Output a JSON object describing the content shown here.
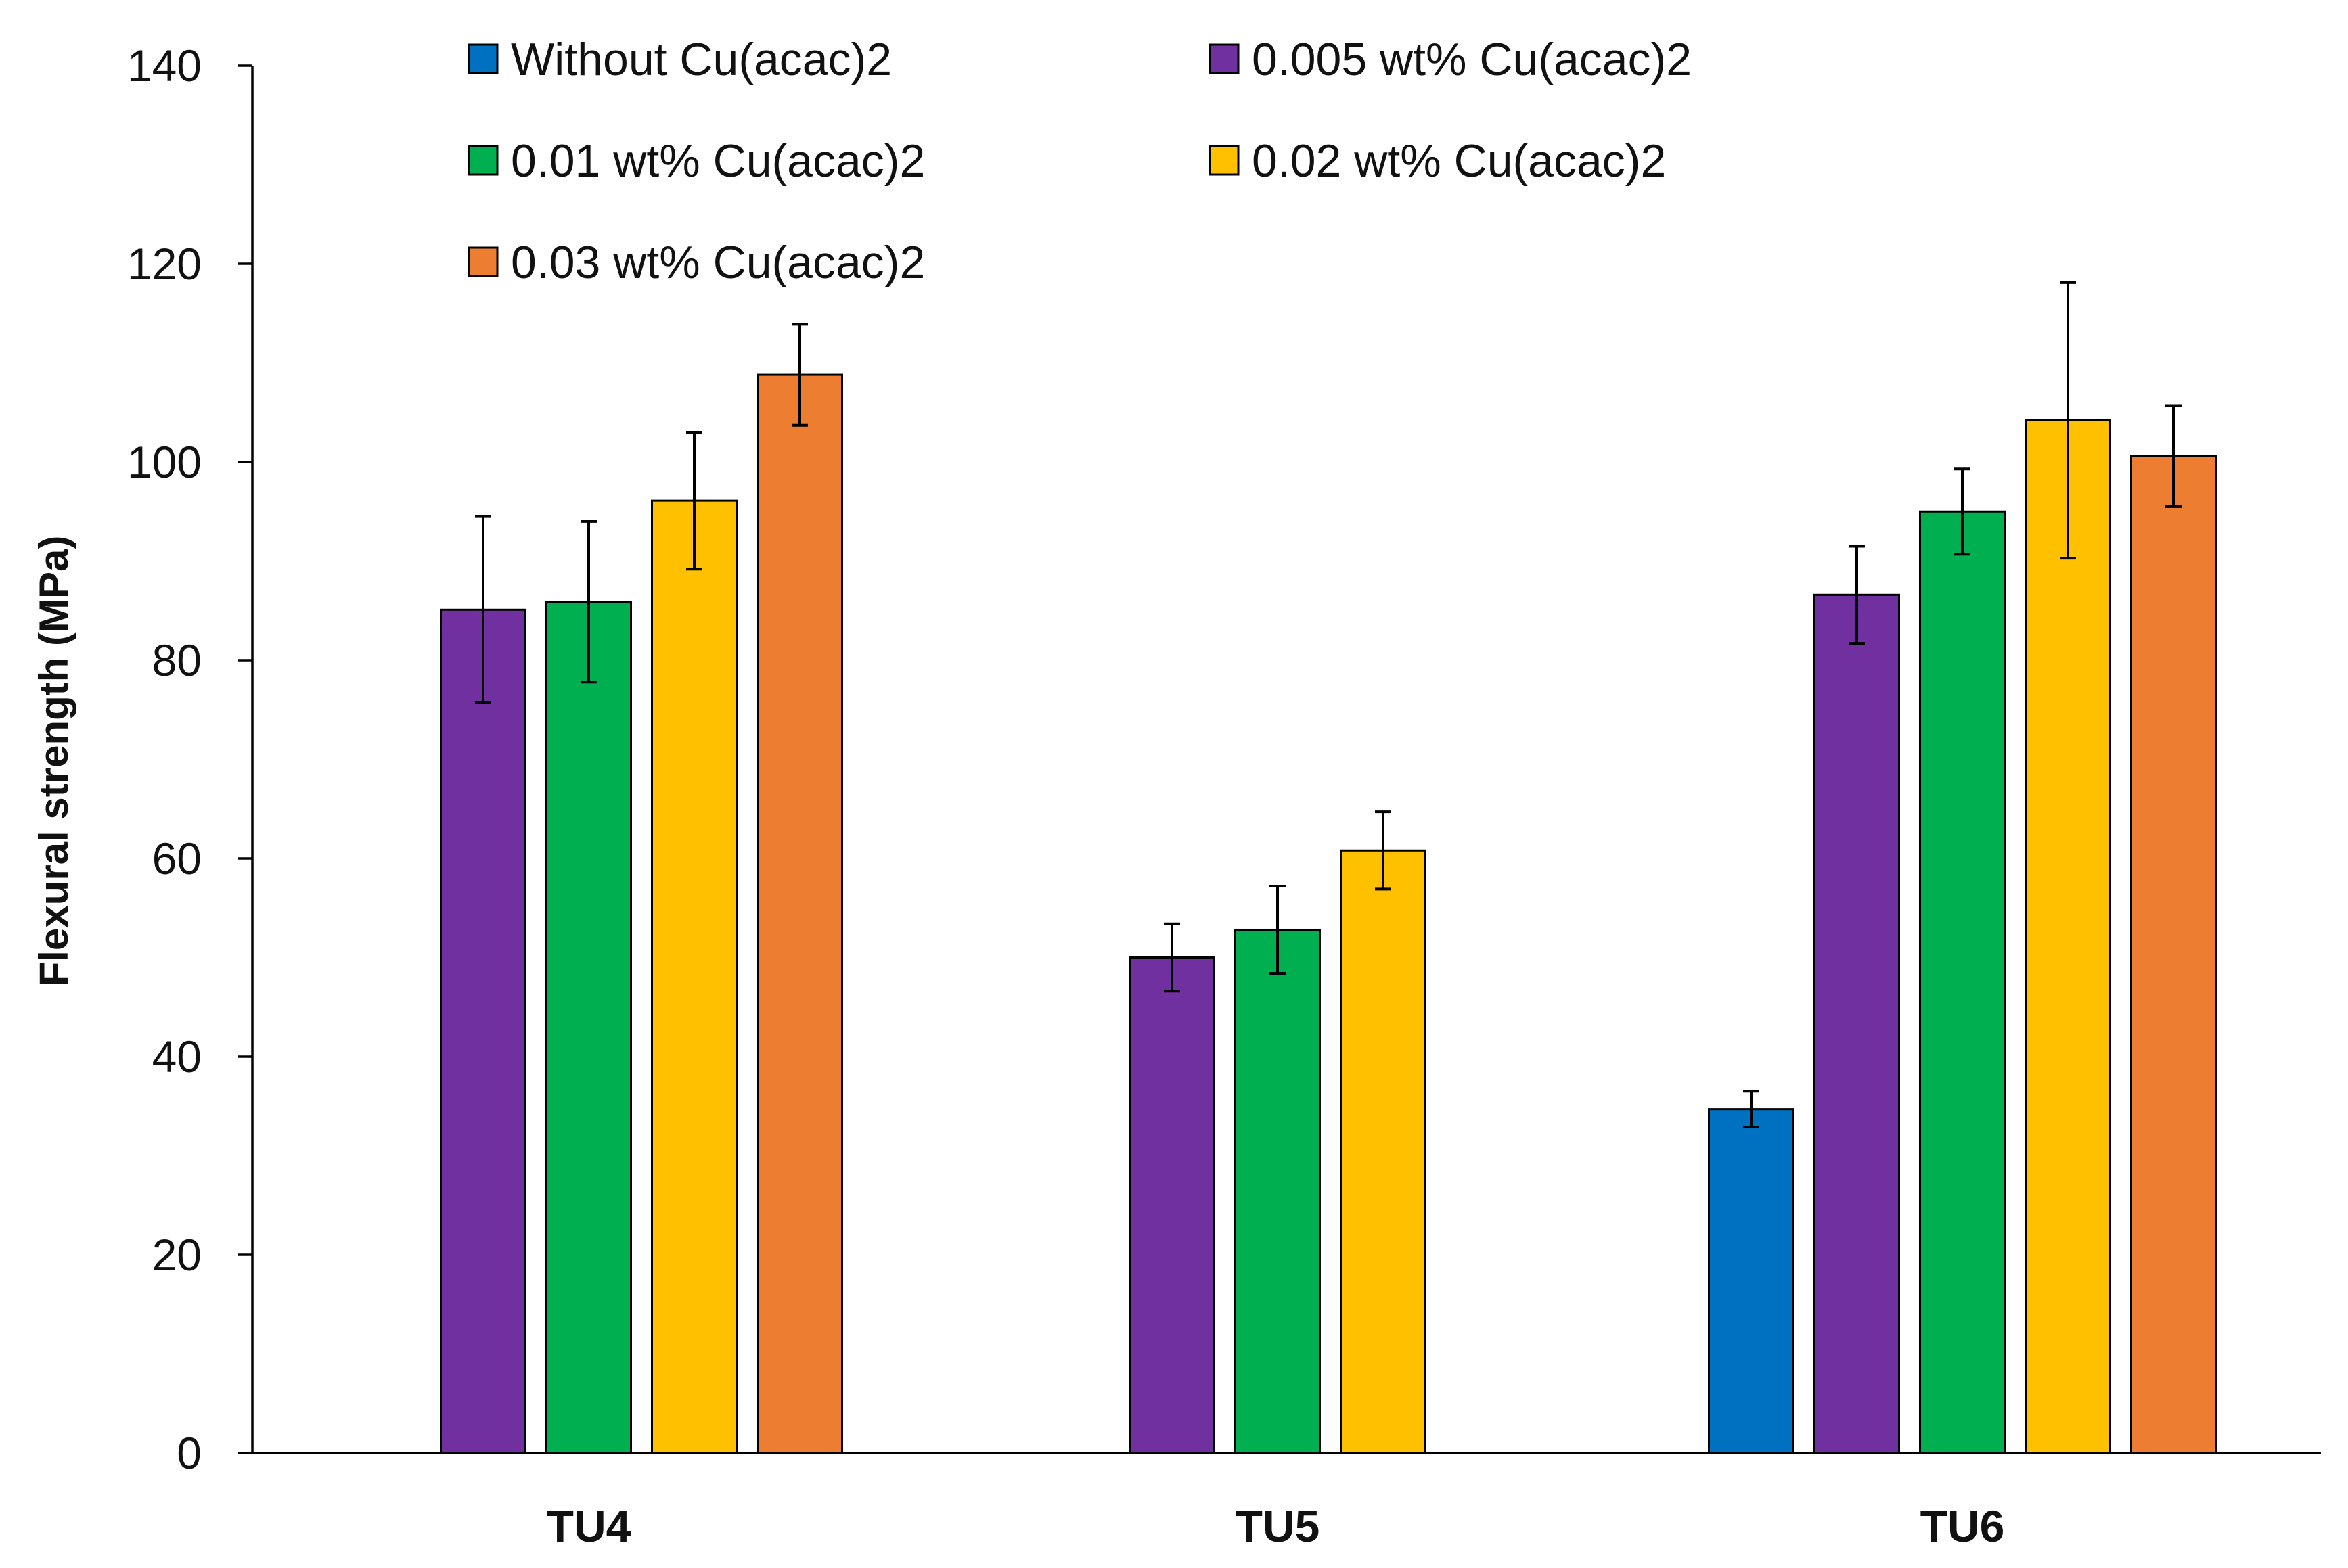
{
  "chart_data": {
    "type": "bar",
    "title": "",
    "xlabel": "",
    "ylabel": "Flexural strength (MPa)",
    "ylim": [
      0,
      140
    ],
    "yticks": [
      0,
      20,
      40,
      60,
      80,
      100,
      120,
      140
    ],
    "grid": false,
    "legend_position": "top",
    "categories": [
      "TU4",
      "TU5",
      "TU6"
    ],
    "series": [
      {
        "name": "Without Cu(acac)2",
        "color": "#0070C0",
        "values": [
          null,
          null,
          34.7
        ],
        "errors": [
          null,
          null,
          1.8
        ]
      },
      {
        "name": "0.005 wt% Cu(acac)2",
        "color": "#7030A0",
        "values": [
          85.1,
          50.0,
          86.6
        ],
        "errors": [
          9.4,
          3.4,
          4.9
        ]
      },
      {
        "name": "0.01 wt% Cu(acac)2",
        "color": "#00B050",
        "values": [
          85.9,
          52.8,
          95.0
        ],
        "errors": [
          8.1,
          4.4,
          4.3
        ]
      },
      {
        "name": "0.02 wt% Cu(acac)2",
        "color": "#FFC000",
        "values": [
          96.1,
          60.8,
          104.2
        ],
        "errors": [
          6.9,
          3.9,
          13.9
        ]
      },
      {
        "name": "0.03 wt% Cu(acac)2",
        "color": "#ED7D31",
        "values": [
          108.8,
          null,
          100.6
        ],
        "errors": [
          5.1,
          null,
          5.1
        ]
      }
    ]
  }
}
